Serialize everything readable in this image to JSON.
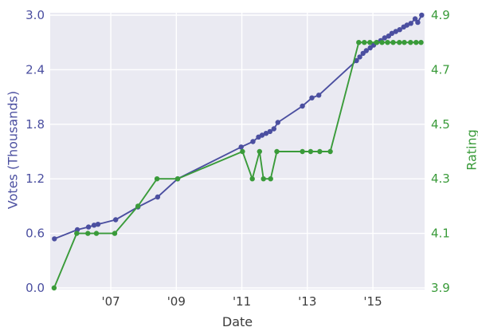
{
  "chart_data": {
    "type": "line",
    "title": "",
    "xlabel": "Date",
    "ylabel_left": "Votes (Thousands)",
    "ylabel_right": "Rating",
    "xlim": [
      2005.15,
      2016.58
    ],
    "ylim_left": [
      0.0,
      3.0
    ],
    "ylim_right": [
      3.9,
      4.9
    ],
    "grid": true,
    "legend_position": "none",
    "x_ticks": {
      "values": [
        2007,
        2009,
        2011,
        2013,
        2015
      ],
      "labels": [
        "'07",
        "'09",
        "'11",
        "'13",
        "'15"
      ]
    },
    "y_ticks_left": {
      "values": [
        0.0,
        0.6,
        1.2,
        1.8,
        2.4,
        3.0
      ],
      "labels": [
        "0.0",
        "0.6",
        "1.2",
        "1.8",
        "2.4",
        "3.0"
      ]
    },
    "y_ticks_right": {
      "values": [
        3.9,
        4.1,
        4.3,
        4.5,
        4.7,
        4.9
      ],
      "labels": [
        "3.9",
        "4.1",
        "4.3",
        "4.5",
        "4.7",
        "4.9"
      ]
    },
    "colors": {
      "votes_line": "#4b4fa0",
      "rating_line": "#3a9b3a",
      "plot_background": "#eaeaf2",
      "gridline": "#ffffff",
      "x_tick_text": "#3c3c3c"
    },
    "series": [
      {
        "name": "votes",
        "label": "Votes (Thousands)",
        "axis": "left",
        "color": "#4b4fa0",
        "x": [
          2005.28,
          2005.98,
          2006.32,
          2006.49,
          2006.61,
          2007.15,
          2007.83,
          2008.43,
          2009.04,
          2010.98,
          2011.34,
          2011.51,
          2011.62,
          2011.74,
          2011.86,
          2011.98,
          2012.1,
          2012.85,
          2013.14,
          2013.35,
          2014.5,
          2014.6,
          2014.7,
          2014.8,
          2014.92,
          2015.02,
          2015.12,
          2015.24,
          2015.36,
          2015.48,
          2015.58,
          2015.7,
          2015.82,
          2015.94,
          2016.04,
          2016.16,
          2016.29,
          2016.37,
          2016.49
        ],
        "y": [
          0.54,
          0.64,
          0.67,
          0.69,
          0.7,
          0.75,
          0.89,
          1.0,
          1.2,
          1.55,
          1.61,
          1.66,
          1.68,
          1.7,
          1.72,
          1.75,
          1.82,
          2.0,
          2.09,
          2.12,
          2.5,
          2.54,
          2.58,
          2.61,
          2.64,
          2.67,
          2.7,
          2.72,
          2.75,
          2.77,
          2.8,
          2.82,
          2.84,
          2.87,
          2.89,
          2.91,
          2.96,
          2.92,
          3.0
        ]
      },
      {
        "name": "rating",
        "label": "Rating",
        "axis": "right",
        "color": "#3a9b3a",
        "x": [
          2005.27,
          2005.96,
          2006.3,
          2006.56,
          2007.12,
          2007.83,
          2008.41,
          2009.04,
          2011.02,
          2011.32,
          2011.54,
          2011.66,
          2011.88,
          2012.07,
          2012.85,
          2013.1,
          2013.38,
          2013.7,
          2014.57,
          2014.74,
          2014.91,
          2015.11,
          2015.28,
          2015.45,
          2015.62,
          2015.81,
          2015.96,
          2016.15,
          2016.32,
          2016.47
        ],
        "y": [
          3.9,
          4.1,
          4.1,
          4.1,
          4.1,
          4.2,
          4.3,
          4.3,
          4.4,
          4.3,
          4.4,
          4.3,
          4.3,
          4.4,
          4.4,
          4.4,
          4.4,
          4.4,
          4.8,
          4.8,
          4.8,
          4.8,
          4.8,
          4.8,
          4.8,
          4.8,
          4.8,
          4.8,
          4.8,
          4.8
        ]
      }
    ]
  }
}
